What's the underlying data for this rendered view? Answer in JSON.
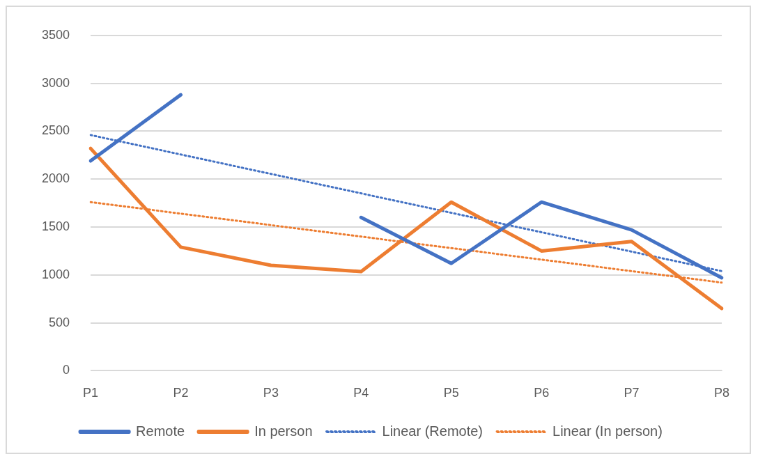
{
  "chart_data": {
    "type": "line",
    "categories": [
      "P1",
      "P2",
      "P3",
      "P4",
      "P5",
      "P6",
      "P7",
      "P8"
    ],
    "series": [
      {
        "name": "Remote",
        "color": "#4472c4",
        "values": [
          2190,
          2880,
          null,
          1600,
          1120,
          1760,
          1470,
          970
        ],
        "line_style": "solid"
      },
      {
        "name": "In person",
        "color": "#ed7d31",
        "values": [
          2320,
          1290,
          1100,
          1035,
          1760,
          1250,
          1350,
          650
        ],
        "line_style": "solid"
      },
      {
        "name": "Linear (Remote)",
        "color": "#4472c4",
        "x": [
          "P1",
          "P8"
        ],
        "values": [
          2460,
          1040
        ],
        "line_style": "dotted"
      },
      {
        "name": "Linear (In person)",
        "color": "#ed7d31",
        "x": [
          "P1",
          "P8"
        ],
        "values": [
          1760,
          920
        ],
        "line_style": "dotted"
      }
    ],
    "ylim": [
      0,
      3500
    ],
    "yticks": [
      0,
      500,
      1000,
      1500,
      2000,
      2500,
      3000,
      3500
    ],
    "grid": "y",
    "legend": "bottom",
    "marker": "none"
  }
}
